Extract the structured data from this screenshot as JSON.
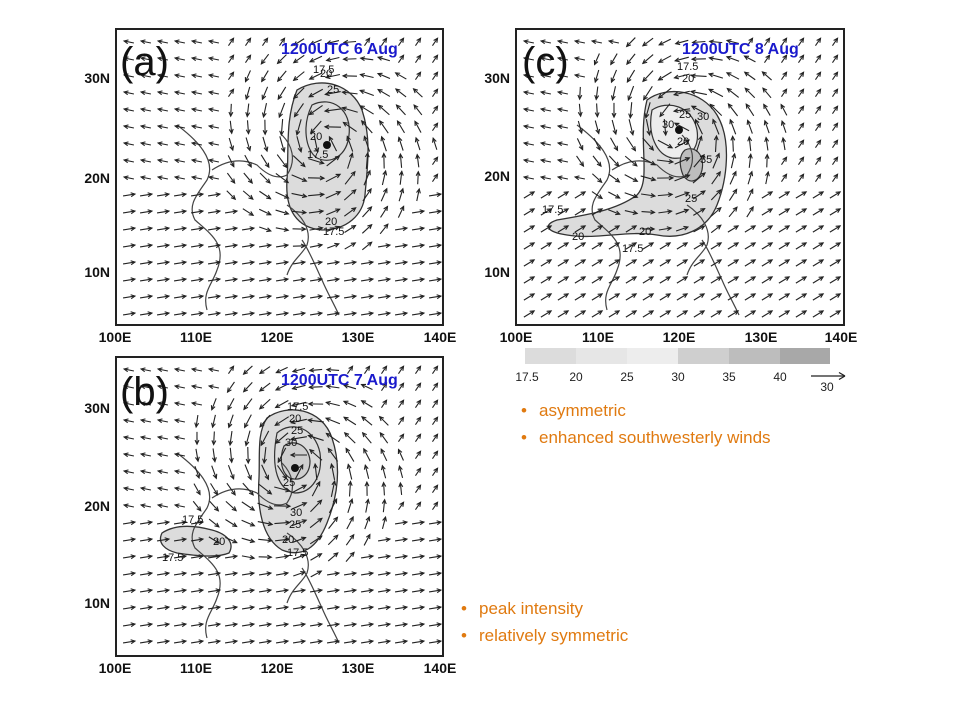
{
  "colors": {
    "time_label": "#1a1acc",
    "bullet_text": "#e07a10",
    "legend_shades": [
      "#dcdcdc",
      "#e6e6e6",
      "#ededed",
      "#cfcfcf",
      "#bdbdbd",
      "#a8a8a8"
    ]
  },
  "panels": [
    {
      "letter": "(a)",
      "time": "1200UTC 6 Aug",
      "lat_ticks": [
        "30N",
        "20N",
        "10N"
      ],
      "lon_ticks": [
        "100E",
        "110E",
        "120E",
        "130E",
        "140E"
      ],
      "contour_labels": [
        "20",
        "25",
        "17.5",
        "20",
        "17.5",
        "20",
        "17.5"
      ]
    },
    {
      "letter": "(b)",
      "time": "1200UTC 7 Aug",
      "lat_ticks": [
        "30N",
        "20N",
        "10N"
      ],
      "lon_ticks": [
        "100E",
        "110E",
        "120E",
        "130E",
        "140E"
      ],
      "contour_labels": [
        "17.5",
        "20",
        "25",
        "30",
        "25",
        "30",
        "25",
        "20",
        "17.5",
        "17.5",
        "20",
        "17.5"
      ]
    },
    {
      "letter": "(c)",
      "time": "1200UTC 8 Aug",
      "lat_ticks": [
        "30N",
        "20N",
        "10N"
      ],
      "lon_ticks": [
        "100E",
        "110E",
        "120E",
        "130E",
        "140E"
      ],
      "contour_labels": [
        "17.5",
        "20",
        "25",
        "30",
        "30",
        "20",
        "35",
        "25",
        "20",
        "17.5",
        "17.5",
        "20"
      ]
    }
  ],
  "legend": {
    "labels": [
      "17.5",
      "20",
      "25",
      "30",
      "35",
      "40"
    ],
    "vector_ref": "30"
  },
  "bullets_c": [
    "asymmetric",
    "enhanced southwesterly winds"
  ],
  "bullets_b": [
    "peak intensity",
    "relatively symmetric"
  ],
  "bullet_symbol": "•"
}
